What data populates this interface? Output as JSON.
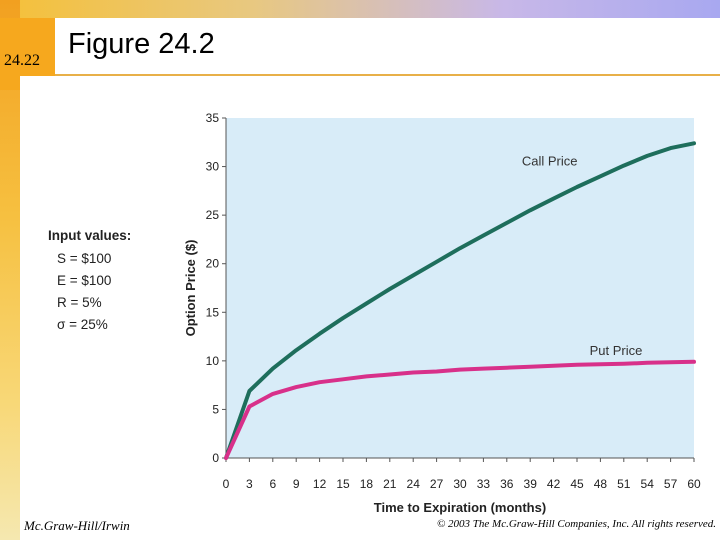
{
  "slide": {
    "number": "24.22",
    "title": "Figure 24.2",
    "footer_left": "Mc.Graw-Hill/Irwin",
    "footer_right": "© 2003 The Mc.Graw-Hill Companies, Inc. All rights reserved."
  },
  "inputs": {
    "heading": "Input values:",
    "items": [
      "S = $100",
      "E = $100",
      "R = 5%",
      "σ = 25%"
    ]
  },
  "colors": {
    "plot_background": "#d8ecf8",
    "call": "#1e6e5c",
    "put": "#d8308a",
    "accent": "#f6a81e"
  },
  "chart_data": {
    "type": "line",
    "title": "",
    "xlabel": "Time to Expiration (months)",
    "ylabel": "Option Price ($)",
    "xlim": [
      0,
      60
    ],
    "ylim": [
      0,
      35
    ],
    "xticks": [
      0,
      3,
      6,
      9,
      12,
      15,
      18,
      21,
      24,
      27,
      30,
      33,
      36,
      39,
      42,
      45,
      48,
      51,
      54,
      57,
      60
    ],
    "yticks": [
      0,
      5,
      10,
      15,
      20,
      25,
      30,
      35
    ],
    "grid": false,
    "x": [
      0,
      3,
      6,
      9,
      12,
      15,
      18,
      21,
      24,
      27,
      30,
      33,
      36,
      39,
      42,
      45,
      48,
      51,
      54,
      57,
      60
    ],
    "series": [
      {
        "name": "Call Price",
        "values": [
          0,
          6.9,
          9.2,
          11.1,
          12.8,
          14.4,
          15.9,
          17.4,
          18.8,
          20.2,
          21.6,
          22.9,
          24.2,
          25.5,
          26.7,
          27.9,
          29.0,
          30.1,
          31.1,
          31.9,
          32.4
        ]
      },
      {
        "name": "Put Price",
        "values": [
          0,
          5.3,
          6.6,
          7.3,
          7.8,
          8.1,
          8.4,
          8.6,
          8.8,
          8.9,
          9.1,
          9.2,
          9.3,
          9.4,
          9.5,
          9.6,
          9.65,
          9.7,
          9.8,
          9.85,
          9.9
        ]
      }
    ]
  }
}
